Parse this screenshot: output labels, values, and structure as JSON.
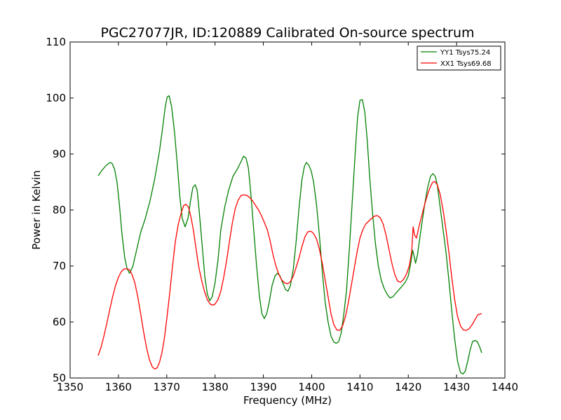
{
  "chart_data": {
    "type": "line",
    "title": "PGC27077JR, ID:120889 Calibrated On-source spectrum",
    "xlabel": "Frequency (MHz)",
    "ylabel": "Power in Kelvin",
    "xlim": [
      1350,
      1440
    ],
    "ylim": [
      50,
      110
    ],
    "xticks": [
      1350,
      1360,
      1370,
      1380,
      1390,
      1400,
      1410,
      1420,
      1430,
      1440
    ],
    "yticks": [
      50,
      60,
      70,
      80,
      90,
      100,
      110
    ],
    "grid": false,
    "legend_position": "top-right",
    "series": [
      {
        "name": "YY1 Tsys75.24",
        "color": "#008000",
        "x": [
          1355.8,
          1356.5,
          1357.5,
          1358.3,
          1358.7,
          1359.2,
          1359.7,
          1360.2,
          1360.7,
          1361.3,
          1361.8,
          1362.3,
          1363.0,
          1363.8,
          1364.6,
          1365.5,
          1366.5,
          1367.5,
          1368.5,
          1369.2,
          1369.7,
          1370.1,
          1370.5,
          1371.0,
          1371.6,
          1372.2,
          1372.7,
          1373.2,
          1373.8,
          1374.4,
          1374.9,
          1375.4,
          1375.9,
          1376.3,
          1376.7,
          1377.3,
          1377.9,
          1378.4,
          1378.9,
          1379.4,
          1380.0,
          1380.6,
          1381.2,
          1382.0,
          1382.8,
          1383.7,
          1384.6,
          1385.3,
          1385.9,
          1386.4,
          1386.9,
          1387.4,
          1388.0,
          1388.6,
          1389.2,
          1389.7,
          1390.2,
          1390.7,
          1391.2,
          1391.8,
          1392.4,
          1392.9,
          1393.4,
          1394.0,
          1394.6,
          1395.1,
          1395.6,
          1396.2,
          1396.8,
          1397.4,
          1398.0,
          1398.5,
          1398.9,
          1399.4,
          1399.9,
          1400.4,
          1401.0,
          1401.6,
          1402.2,
          1402.8,
          1403.4,
          1404.0,
          1404.6,
          1405.1,
          1405.6,
          1406.1,
          1406.6,
          1407.2,
          1407.8,
          1408.4,
          1409.0,
          1409.5,
          1410.0,
          1410.5,
          1411.0,
          1411.5,
          1412.0,
          1412.6,
          1413.2,
          1413.8,
          1414.4,
          1415.0,
          1415.6,
          1416.2,
          1416.8,
          1417.3,
          1417.8,
          1418.5,
          1419.3,
          1420.0,
          1420.5,
          1420.9,
          1421.2,
          1421.5,
          1421.9,
          1422.3,
          1422.8,
          1423.4,
          1424.0,
          1424.6,
          1425.1,
          1425.6,
          1426.0,
          1426.6,
          1427.2,
          1427.8,
          1428.4,
          1429.0,
          1429.6,
          1430.2,
          1430.8,
          1431.3,
          1431.8,
          1432.3,
          1432.8,
          1433.3,
          1433.8,
          1434.3,
          1434.8,
          1435.2
        ],
        "y": [
          86.1,
          87.0,
          88.0,
          88.5,
          88.3,
          87.3,
          85.0,
          81.0,
          76.0,
          71.5,
          69.5,
          68.7,
          70.0,
          73.0,
          76.0,
          78.3,
          81.5,
          85.5,
          90.5,
          95.0,
          98.5,
          100.2,
          100.4,
          98.5,
          94.0,
          88.0,
          82.5,
          78.5,
          77.0,
          78.5,
          81.5,
          84.0,
          84.5,
          83.5,
          80.0,
          74.0,
          68.0,
          65.0,
          63.8,
          64.5,
          67.0,
          71.0,
          76.5,
          80.5,
          83.5,
          86.0,
          87.3,
          88.5,
          89.6,
          89.3,
          87.5,
          83.0,
          76.5,
          70.0,
          64.5,
          61.5,
          60.6,
          61.5,
          63.5,
          66.5,
          68.2,
          68.7,
          68.3,
          67.0,
          65.8,
          65.5,
          66.5,
          69.5,
          74.5,
          80.5,
          85.5,
          87.8,
          88.5,
          88.0,
          87.0,
          85.0,
          81.0,
          75.5,
          69.0,
          63.5,
          60.0,
          57.5,
          56.4,
          56.2,
          56.5,
          58.0,
          61.0,
          65.5,
          73.0,
          81.5,
          90.0,
          96.5,
          99.6,
          99.7,
          97.5,
          92.5,
          86.0,
          79.5,
          74.0,
          70.0,
          67.5,
          66.0,
          65.0,
          64.3,
          64.5,
          65.0,
          65.5,
          66.2,
          67.0,
          68.2,
          70.5,
          72.8,
          71.8,
          70.5,
          72.0,
          74.5,
          77.5,
          81.0,
          84.0,
          86.0,
          86.5,
          86.0,
          84.5,
          80.5,
          76.5,
          72.5,
          67.5,
          62.0,
          57.0,
          53.0,
          51.0,
          50.7,
          51.2,
          53.0,
          55.0,
          56.5,
          56.7,
          56.5,
          55.5,
          54.5
        ]
      },
      {
        "name": "XX1 Tsys69.68",
        "color": "#ff0000",
        "x": [
          1355.8,
          1356.4,
          1357.0,
          1357.6,
          1358.2,
          1358.8,
          1359.4,
          1360.0,
          1360.6,
          1361.2,
          1361.8,
          1362.3,
          1362.8,
          1363.4,
          1364.0,
          1364.6,
          1365.2,
          1365.8,
          1366.4,
          1367.0,
          1367.5,
          1368.0,
          1368.5,
          1369.0,
          1369.5,
          1370.0,
          1370.6,
          1371.2,
          1371.8,
          1372.4,
          1373.0,
          1373.5,
          1374.0,
          1374.5,
          1375.0,
          1375.5,
          1376.0,
          1376.6,
          1377.2,
          1377.8,
          1378.4,
          1379.0,
          1379.5,
          1380.0,
          1380.6,
          1381.2,
          1381.8,
          1382.4,
          1383.0,
          1383.6,
          1384.2,
          1384.8,
          1385.4,
          1386.0,
          1386.6,
          1387.2,
          1387.8,
          1388.4,
          1389.0,
          1389.6,
          1390.2,
          1390.8,
          1391.4,
          1392.0,
          1392.6,
          1393.2,
          1393.8,
          1394.4,
          1395.0,
          1395.6,
          1396.2,
          1396.8,
          1397.4,
          1398.0,
          1398.6,
          1399.2,
          1399.8,
          1400.2,
          1400.6,
          1401.0,
          1401.6,
          1402.2,
          1402.8,
          1403.4,
          1404.0,
          1404.6,
          1405.2,
          1405.8,
          1406.4,
          1407.0,
          1407.6,
          1408.2,
          1408.8,
          1409.4,
          1410.0,
          1410.6,
          1411.2,
          1411.8,
          1412.4,
          1413.0,
          1413.6,
          1414.2,
          1414.8,
          1415.4,
          1416.0,
          1416.6,
          1417.2,
          1417.8,
          1418.4,
          1419.0,
          1419.6,
          1420.2,
          1420.7,
          1421.0,
          1421.3,
          1421.7,
          1422.2,
          1422.8,
          1423.4,
          1424.0,
          1424.5,
          1425.0,
          1425.5,
          1426.0,
          1426.6,
          1427.2,
          1427.8,
          1428.4,
          1429.0,
          1429.6,
          1430.2,
          1430.8,
          1431.4,
          1432.0,
          1432.6,
          1433.2,
          1433.8,
          1434.4,
          1435.2
        ],
        "y": [
          54.0,
          55.5,
          57.5,
          59.8,
          62.2,
          64.5,
          66.5,
          68.0,
          69.0,
          69.5,
          69.5,
          69.3,
          68.5,
          67.0,
          64.5,
          61.5,
          58.3,
          55.5,
          53.3,
          52.0,
          51.6,
          51.8,
          52.8,
          54.5,
          57.0,
          60.5,
          65.0,
          70.0,
          74.5,
          77.5,
          79.5,
          80.8,
          81.0,
          80.5,
          78.8,
          76.5,
          73.5,
          70.0,
          67.5,
          65.5,
          64.0,
          63.2,
          63.0,
          63.2,
          64.0,
          65.5,
          68.0,
          71.0,
          74.5,
          77.8,
          80.3,
          81.8,
          82.6,
          82.7,
          82.6,
          82.2,
          81.6,
          80.8,
          80.0,
          79.0,
          77.8,
          76.5,
          74.5,
          72.0,
          70.0,
          68.5,
          67.5,
          67.0,
          66.8,
          67.2,
          68.2,
          69.8,
          71.5,
          73.5,
          75.2,
          76.1,
          76.2,
          76.0,
          75.5,
          74.8,
          73.0,
          70.5,
          67.5,
          64.5,
          61.5,
          59.5,
          58.6,
          58.5,
          59.3,
          61.0,
          63.5,
          66.5,
          69.5,
          72.5,
          75.0,
          76.5,
          77.5,
          78.0,
          78.5,
          78.9,
          79.0,
          78.6,
          77.5,
          75.5,
          73.0,
          70.5,
          68.5,
          67.3,
          67.1,
          67.6,
          68.5,
          70.0,
          72.5,
          77.0,
          75.5,
          75.0,
          77.0,
          79.0,
          81.0,
          82.8,
          84.0,
          84.9,
          85.1,
          84.5,
          82.8,
          80.0,
          76.5,
          72.5,
          68.0,
          64.0,
          61.0,
          59.3,
          58.6,
          58.5,
          58.8,
          59.5,
          60.4,
          61.3,
          61.5
        ]
      }
    ]
  }
}
